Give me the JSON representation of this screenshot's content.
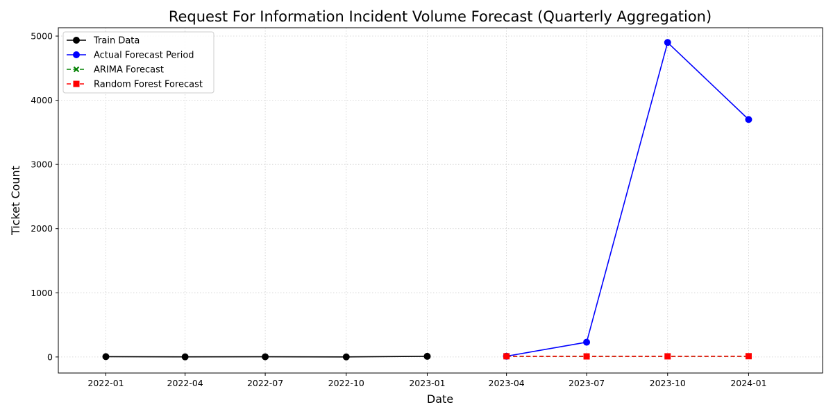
{
  "chart_data": {
    "type": "line",
    "title": "Request For Information Incident Volume Forecast (Quarterly Aggregation)",
    "xlabel": "Date",
    "ylabel": "Ticket Count",
    "x_ticks": [
      "2022-01",
      "2022-04",
      "2022-07",
      "2022-10",
      "2023-01",
      "2023-04",
      "2023-07",
      "2023-10",
      "2024-01"
    ],
    "y_ticks": [
      0,
      1000,
      2000,
      3000,
      4000,
      5000
    ],
    "xlim": [
      "2021-11-08",
      "2024-03-25"
    ],
    "ylim": [
      -250,
      5130
    ],
    "grid": true,
    "legend_position": "top-left",
    "series": [
      {
        "name": "Train Data",
        "color": "#000000",
        "line_style": "solid",
        "marker": "circle",
        "x": [
          "2022-01-01",
          "2022-04-01",
          "2022-07-01",
          "2022-10-01",
          "2023-01-01"
        ],
        "y": [
          5,
          2,
          3,
          1,
          10
        ]
      },
      {
        "name": "Actual Forecast Period",
        "color": "#0000ff",
        "line_style": "solid",
        "marker": "circle",
        "x": [
          "2023-04-01",
          "2023-07-01",
          "2023-10-01",
          "2024-01-01"
        ],
        "y": [
          12,
          230,
          4900,
          3700
        ]
      },
      {
        "name": "ARIMA Forecast",
        "color": "#008000",
        "line_style": "dashed",
        "marker": "x",
        "x": [
          "2023-04-01",
          "2023-07-01",
          "2023-10-01",
          "2024-01-01"
        ],
        "y": [
          10,
          10,
          10,
          10
        ]
      },
      {
        "name": "Random Forest Forecast",
        "color": "#ff0000",
        "line_style": "dashed",
        "marker": "square",
        "x": [
          "2023-04-01",
          "2023-07-01",
          "2023-10-01",
          "2024-01-01"
        ],
        "y": [
          11,
          9,
          10,
          12
        ]
      }
    ]
  }
}
